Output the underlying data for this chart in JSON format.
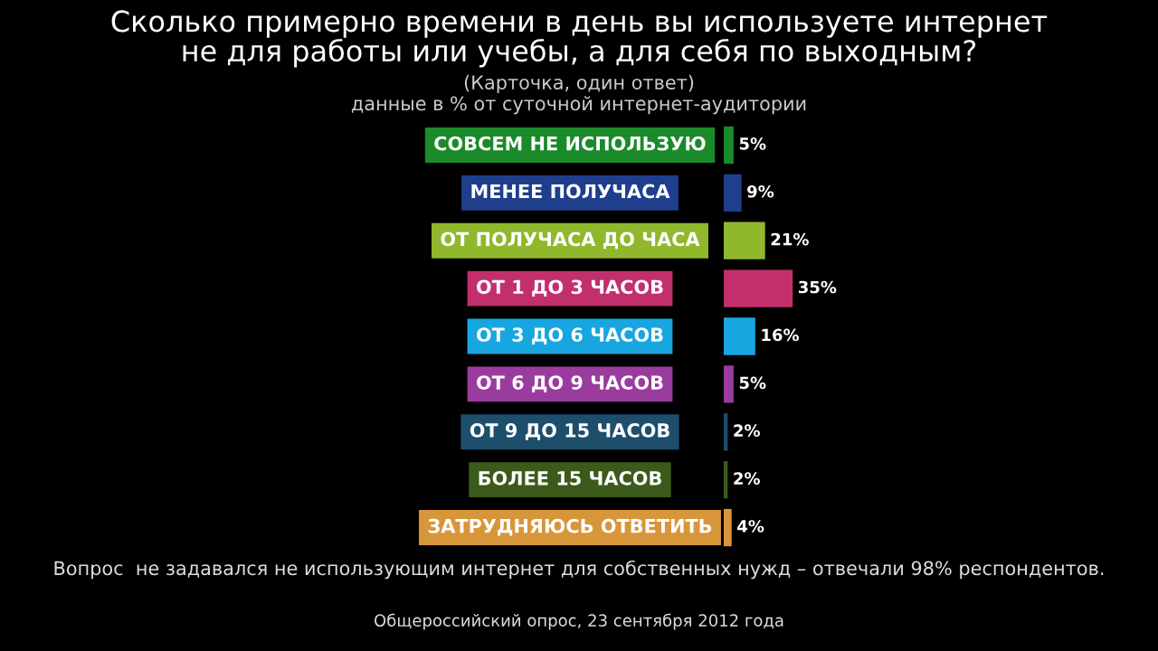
{
  "chart_data": {
    "type": "bar",
    "orientation": "horizontal",
    "title": "Сколько примерно времени в день вы используете интернет\nне для работы или учебы, а для себя по выходным?",
    "subtitle": "(Карточка, один ответ)\nданные в % от суточной интернет-аудитории",
    "categories": [
      "СОВСЕМ НЕ ИСПОЛЬЗУЮ",
      "МЕНЕЕ ПОЛУЧАСА",
      "ОТ ПОЛУЧАСА ДО ЧАСА",
      "ОТ 1 ДО 3 ЧАСОВ",
      "ОТ 3 ДО 6 ЧАСОВ",
      "ОТ 6 ДО 9 ЧАСОВ",
      "ОТ 9 ДО 15 ЧАСОВ",
      "БОЛЕЕ 15 ЧАСОВ",
      "ЗАТРУДНЯЮСЬ ОТВЕТИТЬ"
    ],
    "values": [
      5,
      9,
      21,
      35,
      16,
      5,
      2,
      2,
      4
    ],
    "value_labels": [
      "5%",
      "9%",
      "21%",
      "35%",
      "16%",
      "5%",
      "2%",
      "2%",
      "4%"
    ],
    "colors": [
      "#1b8a2a",
      "#1f3f8c",
      "#8fb82c",
      "#c2306c",
      "#18a6e0",
      "#9a3c9e",
      "#1d4e6c",
      "#3c5a1a",
      "#d8963a"
    ],
    "annotations": [
      "Вопрос  не задавался не использующим интернет для собственных нужд – отвечали 98% респондентов.",
      "Общероссийский опрос, 23 сентября 2012 года"
    ],
    "grid": false,
    "legend": false
  }
}
